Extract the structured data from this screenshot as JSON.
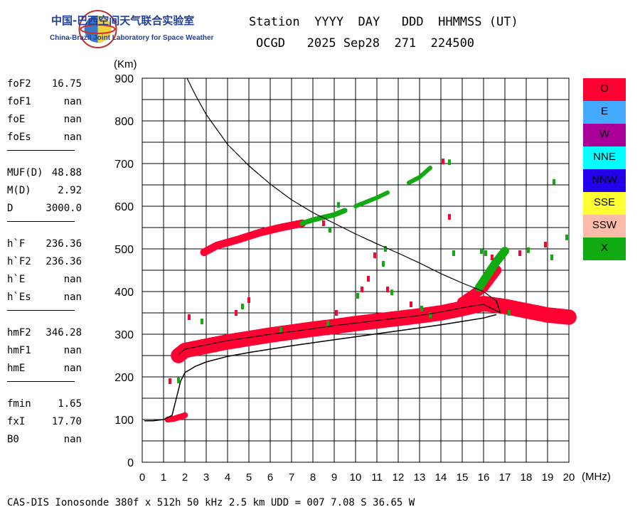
{
  "org": {
    "name_cn": "中国-巴西空间天气联合实验室",
    "name_en": "China-Brazil Joint Laboratory for Space Weather"
  },
  "header": {
    "line1": "Station  YYYY  DAY   DDD  HHMMSS (UT)",
    "line2": "OCGD   2025 Sep28  271  224500"
  },
  "params": [
    {
      "label": "foF2",
      "value": "16.75"
    },
    {
      "label": "foF1",
      "value": "nan"
    },
    {
      "label": "foE",
      "value": "nan"
    },
    {
      "label": "foEs",
      "value": "nan"
    },
    {
      "label": "MUF(D)",
      "value": "48.88"
    },
    {
      "label": "M(D)",
      "value": "2.92"
    },
    {
      "label": "D",
      "value": "3000.0"
    },
    {
      "label": "h`F",
      "value": "236.36"
    },
    {
      "label": "h`F2",
      "value": "236.36"
    },
    {
      "label": "h`E",
      "value": "nan"
    },
    {
      "label": "h`Es",
      "value": "nan"
    },
    {
      "label": "hmF2",
      "value": "346.28"
    },
    {
      "label": "hmF1",
      "value": "nan"
    },
    {
      "label": "hmE",
      "value": "nan"
    },
    {
      "label": "fmin",
      "value": "1.65"
    },
    {
      "label": "fxI",
      "value": "17.70"
    },
    {
      "label": "B0",
      "value": "nan"
    }
  ],
  "legend": [
    {
      "label": "O",
      "color": "#ff0033"
    },
    {
      "label": "E",
      "color": "#44aaff"
    },
    {
      "label": "W",
      "color": "#aa0099"
    },
    {
      "label": "NNE",
      "color": "#00ffff"
    },
    {
      "label": "NNW",
      "color": "#2200ee"
    },
    {
      "label": "SSE",
      "color": "#ffff33"
    },
    {
      "label": "SSW",
      "color": "#ffbbaa"
    },
    {
      "label": "X",
      "color": "#11aa11"
    }
  ],
  "footer": "CAS-DIS Ionosonde 380f x 512h 50 kHz 2.5 km UDD = 007 7.08 S 36.65 W",
  "chart_data": {
    "type": "scatter",
    "xlabel": "(MHz)",
    "ylabel": "(Km)",
    "xlim": [
      0,
      20
    ],
    "ylim": [
      0,
      900
    ],
    "xticks": [
      0,
      1,
      2,
      3,
      4,
      5,
      6,
      7,
      8,
      9,
      10,
      11,
      12,
      13,
      14,
      15,
      16,
      17,
      18,
      19,
      20
    ],
    "yticks": [
      0,
      100,
      200,
      300,
      400,
      500,
      600,
      700,
      800,
      900
    ],
    "grid": true,
    "traces": [
      {
        "name": "O",
        "color": "#ff0033",
        "band_half_km": 18,
        "points": [
          [
            1.7,
            250
          ],
          [
            2,
            262
          ],
          [
            3,
            272
          ],
          [
            4,
            282
          ],
          [
            5,
            290
          ],
          [
            6,
            298
          ],
          [
            7,
            305
          ],
          [
            8,
            312
          ],
          [
            9,
            318
          ],
          [
            10,
            325
          ],
          [
            11,
            331
          ],
          [
            12,
            337
          ],
          [
            13,
            343
          ],
          [
            14,
            350
          ],
          [
            15,
            360
          ],
          [
            16,
            372
          ],
          [
            17,
            365
          ],
          [
            18,
            355
          ],
          [
            19,
            345
          ],
          [
            20,
            340
          ]
        ]
      },
      {
        "name": "O",
        "color": "#ff0033",
        "band_half_km": 12,
        "points": [
          [
            15,
            375
          ],
          [
            15.5,
            392
          ],
          [
            16,
            410
          ],
          [
            16.3,
            430
          ],
          [
            16.6,
            450
          ]
        ]
      },
      {
        "name": "O",
        "color": "#ff0033",
        "band_half_km": 9,
        "points": [
          [
            2.9,
            492
          ],
          [
            3.5,
            508
          ],
          [
            4.5,
            522
          ],
          [
            5.5,
            538
          ],
          [
            6.5,
            550
          ],
          [
            7.5,
            560
          ]
        ]
      },
      {
        "name": "O",
        "color": "#ff0033",
        "band_half_km": 7,
        "points": [
          [
            1.2,
            100
          ],
          [
            1.5,
            102
          ],
          [
            2.0,
            110
          ]
        ]
      },
      {
        "name": "X",
        "color": "#11aa11",
        "band_half_km": 6,
        "points": [
          [
            7.5,
            560
          ],
          [
            8,
            568
          ],
          [
            9,
            580
          ],
          [
            9.5,
            590
          ]
        ]
      },
      {
        "name": "X",
        "color": "#11aa11",
        "band_half_km": 5,
        "points": [
          [
            10,
            600
          ],
          [
            11,
            620
          ],
          [
            11.5,
            632
          ]
        ]
      },
      {
        "name": "X",
        "color": "#11aa11",
        "band_half_km": 5,
        "points": [
          [
            12.5,
            655
          ],
          [
            13,
            668
          ],
          [
            13.5,
            690
          ]
        ]
      },
      {
        "name": "X",
        "color": "#11aa11",
        "band_half_km": 10,
        "points": [
          [
            15.8,
            410
          ],
          [
            16.2,
            440
          ],
          [
            16.6,
            470
          ],
          [
            17,
            495
          ]
        ]
      }
    ],
    "scatter_points": [
      {
        "color": "#ff0033",
        "x": 1.3,
        "y": 190
      },
      {
        "color": "#11aa11",
        "x": 1.7,
        "y": 192
      },
      {
        "color": "#ff0033",
        "x": 14.1,
        "y": 705
      },
      {
        "color": "#11aa11",
        "x": 14.4,
        "y": 703
      },
      {
        "color": "#ff0033",
        "x": 14.4,
        "y": 575
      },
      {
        "color": "#11aa11",
        "x": 14.6,
        "y": 490
      },
      {
        "color": "#ff0033",
        "x": 10.9,
        "y": 485
      },
      {
        "color": "#11aa11",
        "x": 11.4,
        "y": 500
      },
      {
        "color": "#11aa11",
        "x": 11.3,
        "y": 465
      },
      {
        "color": "#ff0033",
        "x": 10.6,
        "y": 430
      },
      {
        "color": "#11aa11",
        "x": 10.1,
        "y": 390
      },
      {
        "color": "#ff0033",
        "x": 10.3,
        "y": 405
      },
      {
        "color": "#ff0033",
        "x": 11.5,
        "y": 405
      },
      {
        "color": "#11aa11",
        "x": 11.7,
        "y": 398
      },
      {
        "color": "#ff0033",
        "x": 17.7,
        "y": 490
      },
      {
        "color": "#11aa11",
        "x": 18.1,
        "y": 497
      },
      {
        "color": "#ff0033",
        "x": 18.9,
        "y": 510
      },
      {
        "color": "#11aa11",
        "x": 19.2,
        "y": 480
      },
      {
        "color": "#11aa11",
        "x": 19.3,
        "y": 657
      },
      {
        "color": "#11aa11",
        "x": 19.9,
        "y": 527
      },
      {
        "color": "#ff0033",
        "x": 16.4,
        "y": 480
      },
      {
        "color": "#11aa11",
        "x": 16.1,
        "y": 490
      },
      {
        "color": "#11aa11",
        "x": 15.9,
        "y": 495
      },
      {
        "color": "#ff0033",
        "x": 12.6,
        "y": 370
      },
      {
        "color": "#11aa11",
        "x": 13.1,
        "y": 360
      },
      {
        "color": "#ff0033",
        "x": 9.1,
        "y": 350
      },
      {
        "color": "#11aa11",
        "x": 4.7,
        "y": 365
      },
      {
        "color": "#ff0033",
        "x": 4.4,
        "y": 350
      },
      {
        "color": "#ff0033",
        "x": 5.0,
        "y": 380
      },
      {
        "color": "#11aa11",
        "x": 8.8,
        "y": 545
      },
      {
        "color": "#11aa11",
        "x": 9.2,
        "y": 603
      },
      {
        "color": "#ff0033",
        "x": 8.5,
        "y": 560
      },
      {
        "color": "#11aa11",
        "x": 2.8,
        "y": 330
      },
      {
        "color": "#ff0033",
        "x": 2.2,
        "y": 340
      },
      {
        "color": "#11aa11",
        "x": 8.7,
        "y": 325
      },
      {
        "color": "#11aa11",
        "x": 6.5,
        "y": 310
      },
      {
        "color": "#11aa11",
        "x": 13.5,
        "y": 345
      },
      {
        "color": "#11aa11",
        "x": 17.2,
        "y": 350
      }
    ],
    "trace_line": [
      [
        1.7,
        252
      ],
      [
        2,
        265
      ],
      [
        3,
        275
      ],
      [
        4,
        285
      ],
      [
        5,
        292
      ],
      [
        6,
        300
      ],
      [
        7,
        306
      ],
      [
        8,
        313
      ],
      [
        9,
        320
      ],
      [
        10,
        326
      ],
      [
        11,
        332
      ],
      [
        12,
        338
      ],
      [
        13,
        344
      ],
      [
        14,
        352
      ],
      [
        15,
        362
      ],
      [
        16,
        370
      ],
      [
        16.8,
        350
      ]
    ],
    "profile_curve": [
      [
        0.1,
        97
      ],
      [
        0.5,
        97
      ],
      [
        1.0,
        100
      ],
      [
        1.4,
        110
      ],
      [
        1.6,
        150
      ],
      [
        1.8,
        190
      ],
      [
        2.0,
        210
      ],
      [
        2.5,
        225
      ],
      [
        3,
        235
      ],
      [
        4,
        248
      ],
      [
        5,
        257
      ],
      [
        6,
        265
      ],
      [
        7,
        273
      ],
      [
        8,
        280
      ],
      [
        9,
        287
      ],
      [
        10,
        294
      ],
      [
        11,
        301
      ],
      [
        12,
        308
      ],
      [
        13,
        315
      ],
      [
        14,
        322
      ],
      [
        15,
        330
      ],
      [
        16,
        338
      ],
      [
        16.6,
        346
      ]
    ],
    "secondary_curve": [
      [
        2.1,
        900
      ],
      [
        2.5,
        860
      ],
      [
        3,
        815
      ],
      [
        4,
        745
      ],
      [
        5,
        695
      ],
      [
        6,
        652
      ],
      [
        7,
        615
      ],
      [
        8,
        585
      ],
      [
        9,
        560
      ],
      [
        10,
        535
      ],
      [
        11,
        512
      ],
      [
        12,
        490
      ],
      [
        13,
        467
      ],
      [
        14,
        442
      ],
      [
        15,
        420
      ],
      [
        16,
        400
      ],
      [
        16.6,
        378
      ],
      [
        16.8,
        348
      ]
    ]
  }
}
